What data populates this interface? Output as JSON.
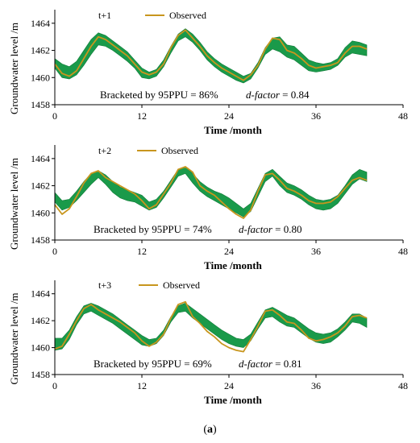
{
  "figure": {
    "caption_open": "(",
    "caption_label": "a",
    "caption_close": ")"
  },
  "style": {
    "band_color": "#1a9a4a",
    "band_edge": "#0e7a36",
    "observed_color": "#c8961e",
    "axis_color": "#000000"
  },
  "chart_data": [
    {
      "type": "area",
      "panel_label": "t+1",
      "legend": [
        "Observed"
      ],
      "xlabel": "Time /month",
      "ylabel": "Groundwater level /m",
      "xlim": [
        0,
        48
      ],
      "ylim": [
        1458,
        1465
      ],
      "xticks": [
        0,
        12,
        24,
        36,
        48
      ],
      "yticks": [
        1458,
        1460,
        1462,
        1464
      ],
      "annotation_left": "Bracketed by 95PPU = 86%",
      "annotation_italic": "d-factor",
      "annotation_right": " = 0.84",
      "x": [
        0,
        1,
        2,
        3,
        4,
        5,
        6,
        7,
        8,
        9,
        10,
        11,
        12,
        13,
        14,
        15,
        16,
        17,
        18,
        19,
        20,
        21,
        22,
        23,
        24,
        25,
        26,
        27,
        28,
        29,
        30,
        31,
        32,
        33,
        34,
        35,
        36,
        37,
        38,
        39,
        40,
        41,
        42,
        43
      ],
      "series": [
        {
          "name": "95PPU_upper",
          "values": [
            1461.4,
            1461.0,
            1460.8,
            1461.2,
            1462.0,
            1462.8,
            1463.3,
            1463.1,
            1462.7,
            1462.3,
            1461.9,
            1461.3,
            1460.7,
            1460.4,
            1460.6,
            1461.3,
            1462.3,
            1463.2,
            1463.6,
            1463.2,
            1462.6,
            1461.9,
            1461.4,
            1461.0,
            1460.7,
            1460.4,
            1460.1,
            1460.3,
            1461.1,
            1462.2,
            1462.9,
            1463.0,
            1462.4,
            1462.3,
            1461.8,
            1461.3,
            1461.1,
            1461.0,
            1461.1,
            1461.4,
            1462.2,
            1462.7,
            1462.6,
            1462.4
          ]
        },
        {
          "name": "95PPU_lower",
          "values": [
            1460.7,
            1460.0,
            1459.9,
            1460.2,
            1460.9,
            1461.7,
            1462.4,
            1462.3,
            1462.0,
            1461.6,
            1461.2,
            1460.7,
            1460.0,
            1459.9,
            1460.1,
            1460.8,
            1461.8,
            1462.7,
            1463.0,
            1462.6,
            1462.0,
            1461.3,
            1460.8,
            1460.4,
            1460.1,
            1459.8,
            1459.6,
            1459.9,
            1460.7,
            1461.7,
            1462.1,
            1461.9,
            1461.5,
            1461.3,
            1460.9,
            1460.5,
            1460.4,
            1460.5,
            1460.6,
            1460.9,
            1461.5,
            1461.8,
            1461.7,
            1461.6
          ]
        },
        {
          "name": "Observed",
          "values": [
            1461.0,
            1460.3,
            1460.1,
            1460.5,
            1461.4,
            1462.3,
            1463.0,
            1462.8,
            1462.4,
            1462.0,
            1461.6,
            1461.0,
            1460.4,
            1460.2,
            1460.4,
            1461.0,
            1462.2,
            1463.1,
            1463.5,
            1462.9,
            1462.3,
            1461.6,
            1461.1,
            1460.7,
            1460.4,
            1460.1,
            1459.8,
            1460.2,
            1460.9,
            1462.1,
            1462.9,
            1462.8,
            1462.0,
            1461.8,
            1461.4,
            1460.9,
            1460.7,
            1460.8,
            1460.9,
            1461.1,
            1461.8,
            1462.3,
            1462.3,
            1462.1
          ]
        }
      ]
    },
    {
      "type": "area",
      "panel_label": "t+2",
      "legend": [
        "Observed"
      ],
      "xlabel": "Time /month",
      "ylabel": "Groundwater level /m",
      "xlim": [
        0,
        48
      ],
      "ylim": [
        1458,
        1465
      ],
      "xticks": [
        0,
        12,
        24,
        36,
        48
      ],
      "yticks": [
        1458,
        1460,
        1462,
        1464
      ],
      "annotation_left": "Bracketed by 95PPU = 74%",
      "annotation_italic": "d-factor",
      "annotation_right": " = 0.80",
      "x": [
        0,
        1,
        2,
        3,
        4,
        5,
        6,
        7,
        8,
        9,
        10,
        11,
        12,
        13,
        14,
        15,
        16,
        17,
        18,
        19,
        20,
        21,
        22,
        23,
        24,
        25,
        26,
        27,
        28,
        29,
        30,
        31,
        32,
        33,
        34,
        35,
        36,
        37,
        38,
        39,
        40,
        41,
        42,
        43
      ],
      "series": [
        {
          "name": "95PPU_upper",
          "values": [
            1461.5,
            1460.9,
            1461.0,
            1461.6,
            1462.3,
            1462.9,
            1463.1,
            1462.8,
            1462.3,
            1461.9,
            1461.7,
            1461.5,
            1461.3,
            1460.8,
            1461.0,
            1461.6,
            1462.4,
            1463.2,
            1463.4,
            1462.9,
            1462.3,
            1461.9,
            1461.6,
            1461.4,
            1461.1,
            1460.7,
            1460.3,
            1460.7,
            1461.8,
            1462.9,
            1463.2,
            1462.7,
            1462.2,
            1462.0,
            1461.7,
            1461.3,
            1461.0,
            1460.9,
            1461.0,
            1461.3,
            1462.0,
            1462.8,
            1463.2,
            1463.0
          ]
        },
        {
          "name": "95PPU_lower",
          "values": [
            1460.8,
            1460.2,
            1460.4,
            1460.9,
            1461.5,
            1462.1,
            1462.6,
            1462.1,
            1461.5,
            1461.1,
            1460.9,
            1460.8,
            1460.5,
            1460.2,
            1460.4,
            1461.1,
            1461.9,
            1462.7,
            1462.9,
            1462.2,
            1461.6,
            1461.2,
            1460.9,
            1460.6,
            1460.3,
            1460.0,
            1459.7,
            1460.1,
            1461.2,
            1462.3,
            1462.7,
            1462.0,
            1461.5,
            1461.3,
            1461.0,
            1460.6,
            1460.3,
            1460.2,
            1460.3,
            1460.7,
            1461.4,
            1462.1,
            1462.5,
            1462.3
          ]
        },
        {
          "name": "Observed",
          "values": [
            1460.6,
            1459.9,
            1460.3,
            1461.2,
            1462.2,
            1462.9,
            1463.1,
            1462.6,
            1462.3,
            1462.0,
            1461.7,
            1461.4,
            1460.9,
            1460.3,
            1460.6,
            1461.4,
            1462.2,
            1463.2,
            1463.4,
            1463.0,
            1462.0,
            1461.6,
            1461.3,
            1460.8,
            1460.3,
            1459.9,
            1459.6,
            1460.2,
            1461.6,
            1462.8,
            1462.9,
            1462.4,
            1461.8,
            1461.6,
            1461.3,
            1460.9,
            1460.7,
            1460.7,
            1460.8,
            1461.2,
            1461.8,
            1462.4,
            1462.6,
            1462.4
          ]
        }
      ]
    },
    {
      "type": "area",
      "panel_label": "t+3",
      "legend": [
        "Observed"
      ],
      "xlabel": "Time /month",
      "ylabel": "Groundwater level /m",
      "xlim": [
        0,
        48
      ],
      "ylim": [
        1458,
        1465
      ],
      "xticks": [
        0,
        12,
        24,
        36,
        48
      ],
      "yticks": [
        1458,
        1460,
        1462,
        1464
      ],
      "annotation_left": "Bracketed by 95PPU = 69%",
      "annotation_italic": "d-factor",
      "annotation_right": " = 0.81",
      "x": [
        0,
        1,
        2,
        3,
        4,
        5,
        6,
        7,
        8,
        9,
        10,
        11,
        12,
        13,
        14,
        15,
        16,
        17,
        18,
        19,
        20,
        21,
        22,
        23,
        24,
        25,
        26,
        27,
        28,
        29,
        30,
        31,
        32,
        33,
        34,
        35,
        36,
        37,
        38,
        39,
        40,
        41,
        42,
        43
      ],
      "series": [
        {
          "name": "95PPU_upper",
          "values": [
            1460.7,
            1460.7,
            1461.3,
            1462.3,
            1463.1,
            1463.3,
            1463.1,
            1462.8,
            1462.5,
            1462.1,
            1461.7,
            1461.3,
            1460.9,
            1460.6,
            1460.7,
            1461.3,
            1462.3,
            1463.1,
            1463.3,
            1462.9,
            1462.5,
            1462.1,
            1461.7,
            1461.3,
            1461.0,
            1460.7,
            1460.6,
            1461.0,
            1461.9,
            1462.8,
            1463.0,
            1462.7,
            1462.4,
            1462.2,
            1461.8,
            1461.4,
            1461.1,
            1461.0,
            1461.1,
            1461.4,
            1461.9,
            1462.5,
            1462.5,
            1462.2
          ]
        },
        {
          "name": "95PPU_lower",
          "values": [
            1459.8,
            1459.9,
            1460.6,
            1461.7,
            1462.5,
            1462.7,
            1462.4,
            1462.1,
            1461.8,
            1461.4,
            1461.0,
            1460.6,
            1460.2,
            1460.1,
            1460.3,
            1460.9,
            1461.9,
            1462.6,
            1462.7,
            1462.2,
            1461.8,
            1461.4,
            1461.0,
            1460.6,
            1460.3,
            1460.1,
            1460.0,
            1460.5,
            1461.4,
            1462.2,
            1462.3,
            1461.9,
            1461.6,
            1461.5,
            1461.1,
            1460.7,
            1460.4,
            1460.3,
            1460.4,
            1460.8,
            1461.3,
            1461.9,
            1461.8,
            1461.5
          ]
        },
        {
          "name": "Observed",
          "values": [
            1459.9,
            1460.1,
            1461.0,
            1462.0,
            1462.9,
            1463.2,
            1462.8,
            1462.5,
            1462.2,
            1461.9,
            1461.5,
            1461.1,
            1460.5,
            1460.1,
            1460.4,
            1461.0,
            1462.2,
            1463.2,
            1463.4,
            1462.3,
            1461.8,
            1461.2,
            1460.8,
            1460.3,
            1460.0,
            1459.8,
            1459.7,
            1460.6,
            1461.6,
            1462.7,
            1462.8,
            1462.4,
            1461.9,
            1461.8,
            1461.3,
            1460.7,
            1460.5,
            1460.6,
            1460.8,
            1461.1,
            1461.6,
            1462.3,
            1462.4,
            1462.2
          ]
        }
      ]
    }
  ]
}
